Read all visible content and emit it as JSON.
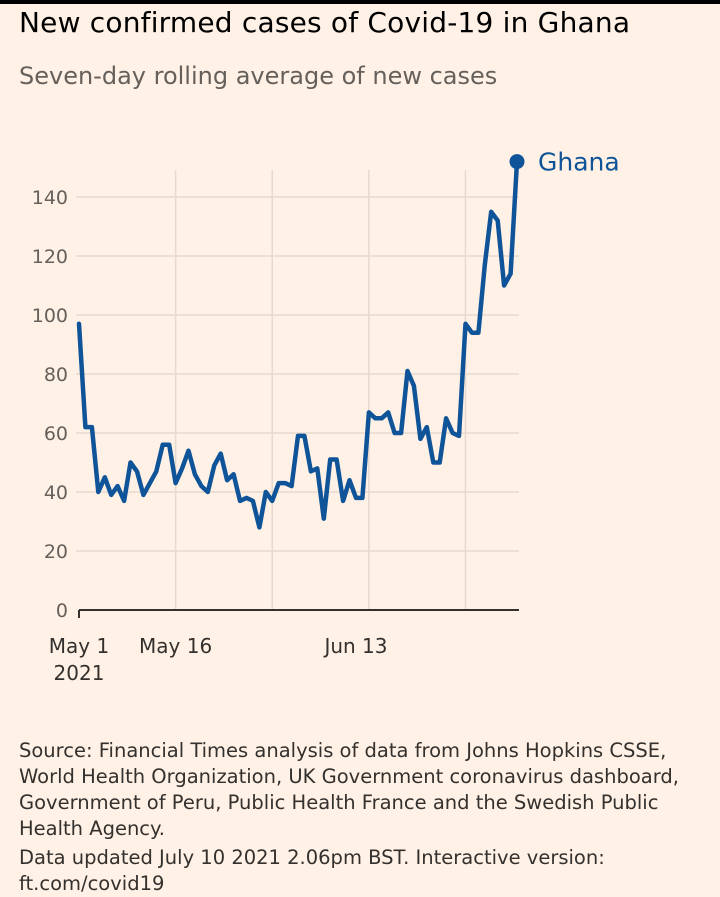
{
  "header": {
    "title": "New confirmed cases of Covid-19 in Ghana",
    "subtitle": "Seven-day rolling average of new cases"
  },
  "footer": {
    "source": "Source: Financial Times analysis of data from Johns Hopkins CSSE, World Health Organization, UK Government coronavirus dashboard, Government of Peru, Public Health France and the Swedish Public Health Agency.",
    "updated": "Data updated July 10 2021 2.06pm BST. Interactive version: ft.com/covid19"
  },
  "colors": {
    "background": "#fff1e5",
    "line": "#0f5499",
    "grid": "#e6d9ce",
    "axis": "#33302e"
  },
  "chart_data": {
    "type": "line",
    "title": "New confirmed cases of Covid-19 in Ghana",
    "subtitle": "Seven-day rolling average of new cases",
    "ylim": [
      0,
      150
    ],
    "yticks": [
      0,
      20,
      40,
      60,
      80,
      100,
      120,
      140
    ],
    "xtick_labels": [
      {
        "day": 0,
        "label": "May 1",
        "sublabel": "2021"
      },
      {
        "day": 15,
        "label": "May 16",
        "sublabel": ""
      },
      {
        "day": 43,
        "label": "Jun 13",
        "sublabel": ""
      }
    ],
    "grid": true,
    "x_start": "2021-05-01",
    "x_end": "2021-07-09",
    "series": [
      {
        "name": "Ghana",
        "color": "#0f5499",
        "values": [
          97,
          62,
          62,
          40,
          45,
          39,
          42,
          37,
          50,
          47,
          39,
          43,
          47,
          56,
          56,
          43,
          48,
          54,
          46,
          42,
          40,
          49,
          53,
          44,
          46,
          37,
          38,
          37,
          28,
          40,
          37,
          43,
          43,
          42,
          59,
          59,
          47,
          48,
          31,
          51,
          51,
          37,
          44,
          38,
          38,
          67,
          65,
          65,
          67,
          60,
          60,
          81,
          76,
          58,
          62,
          50,
          50,
          65,
          60,
          59,
          97,
          94,
          94,
          117,
          135,
          132,
          110,
          114,
          152
        ]
      }
    ]
  }
}
